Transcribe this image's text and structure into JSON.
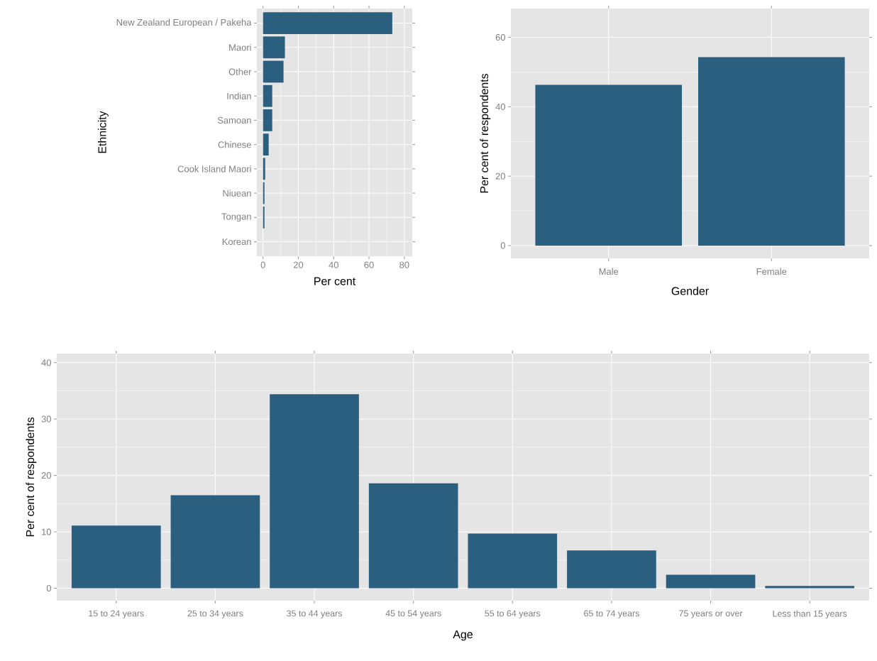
{
  "chart_data": [
    {
      "type": "bar",
      "orientation": "horizontal",
      "xlabel": "Per cent",
      "ylabel": "Ethnicity",
      "categories": [
        "New Zealand European / Pakeha",
        "Maori",
        "Other",
        "Indian",
        "Samoan",
        "Chinese",
        "Cook Island Maori",
        "Niuean",
        "Tongan",
        "Korean"
      ],
      "values": [
        73.2,
        12.4,
        11.6,
        5.2,
        5.2,
        3.2,
        1.2,
        0.8,
        0.8,
        0
      ],
      "color": "#2a5f80",
      "xlim": [
        -3.5,
        84.5
      ],
      "xticks": [
        0,
        20,
        40,
        60,
        80
      ],
      "grid": true
    },
    {
      "type": "bar",
      "xlabel": "Gender",
      "ylabel": "Per cent of respondents",
      "categories": [
        "Male",
        "Female"
      ],
      "values": [
        46.3,
        54.3
      ],
      "color": "#2a5f80",
      "ylim": [
        -3.7,
        68.3
      ],
      "yticks": [
        0,
        20,
        40,
        60
      ],
      "grid": true
    },
    {
      "type": "bar",
      "xlabel": "Age",
      "ylabel": "Per cent of respondents",
      "categories": [
        "15 to 24 years",
        "25 to 34 years",
        "35 to 44 years",
        "45 to 54 years",
        "55 to 64 years",
        "65 to 74 years",
        "75 years or over",
        "Less than 15 years"
      ],
      "values": [
        11.1,
        16.5,
        34.4,
        18.6,
        9.7,
        6.7,
        2.4,
        0.4
      ],
      "color": "#2a5f80",
      "ylim": [
        -2.2,
        41.6
      ],
      "yticks": [
        0,
        10,
        20,
        30,
        40
      ],
      "grid": true
    }
  ]
}
